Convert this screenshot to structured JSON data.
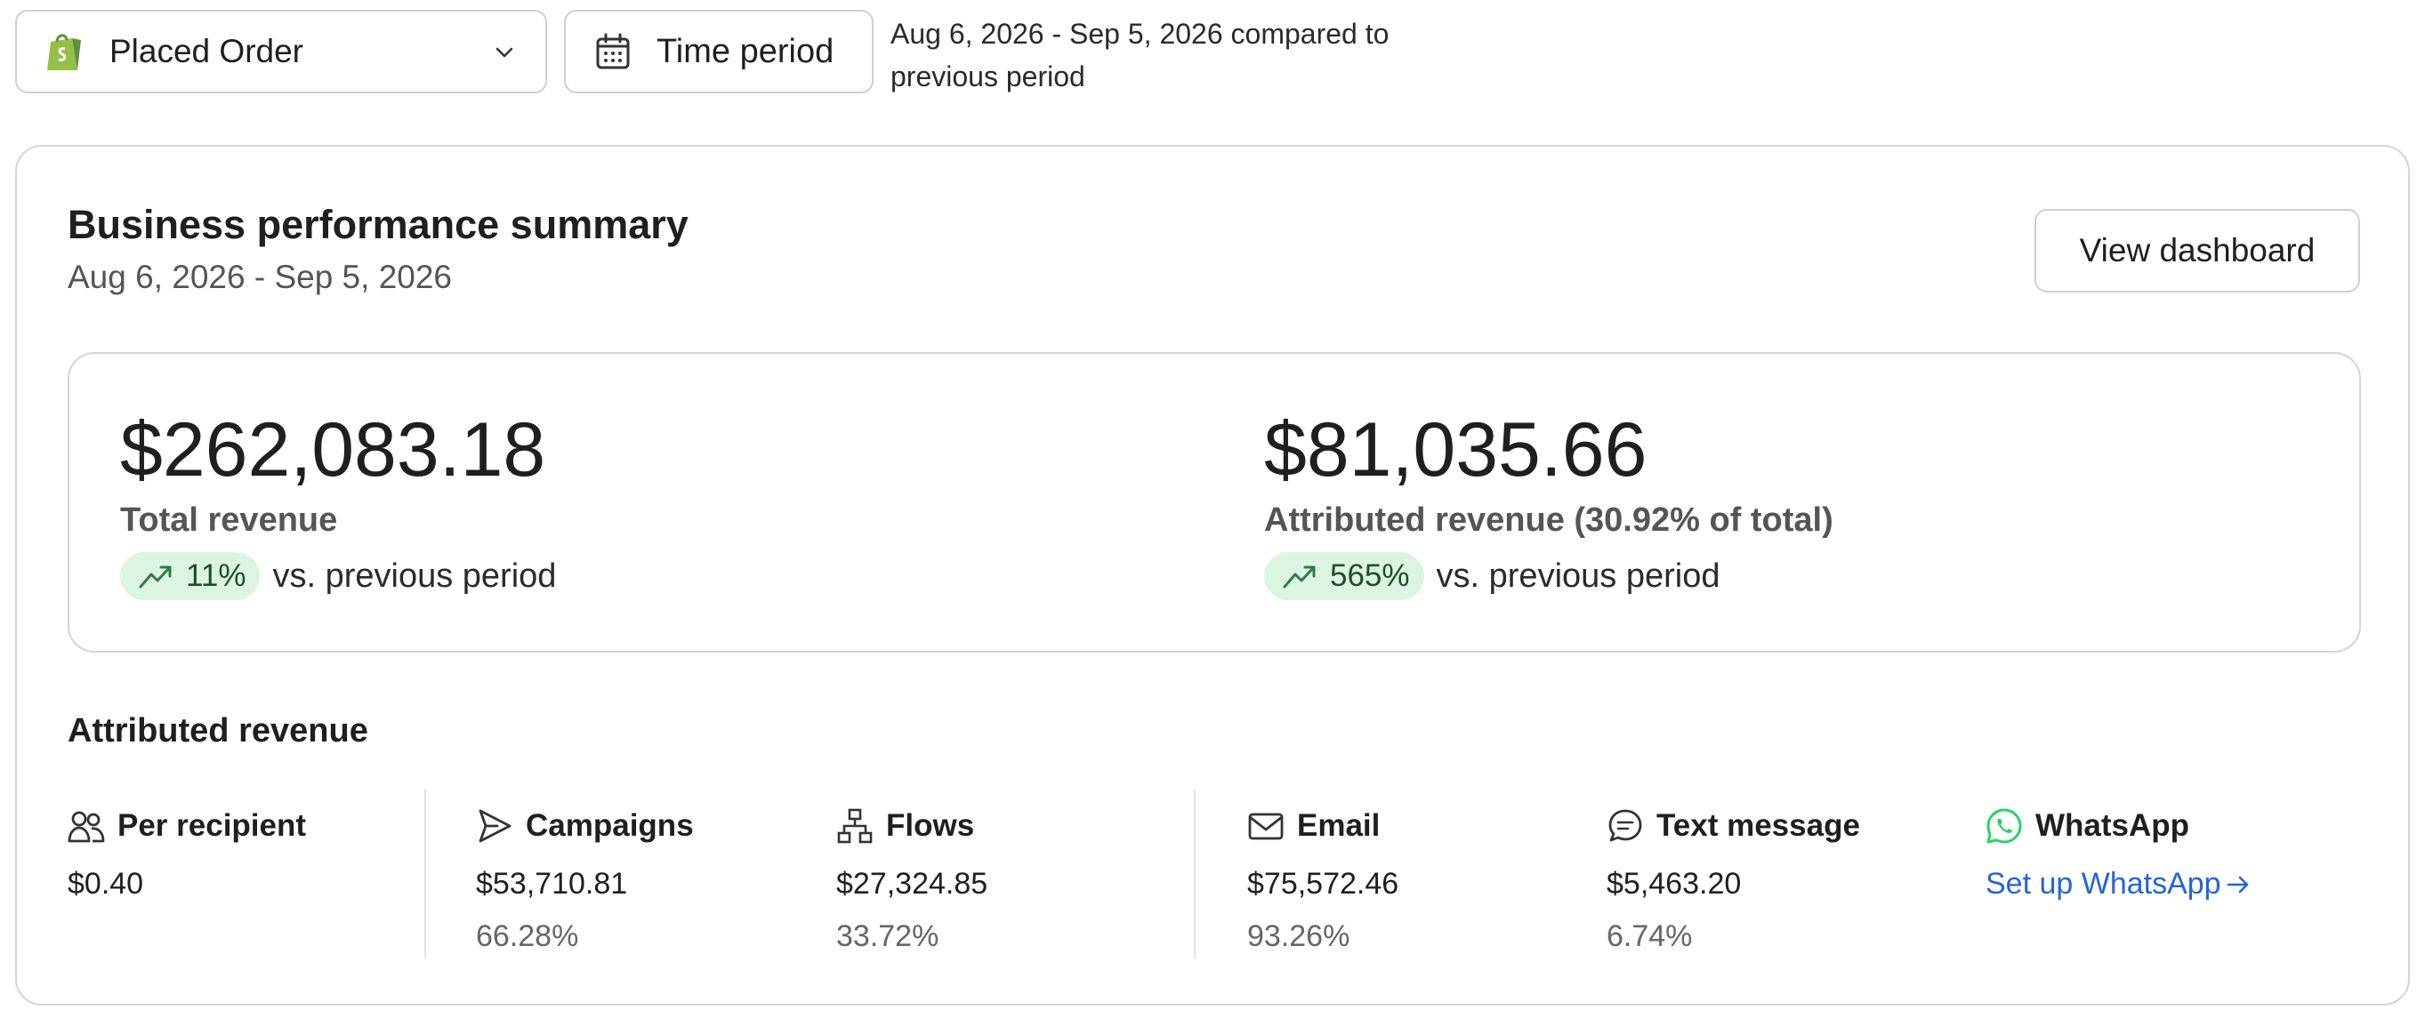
{
  "topbar": {
    "metric_select": {
      "value": "Placed Order",
      "icon": "shopify-bag-icon"
    },
    "time_period_label": "Time period",
    "compare_text": "Aug 6, 2026 - Sep 5, 2026 compared to previous period"
  },
  "summary": {
    "title": "Business performance summary",
    "date_range": "Aug 6, 2026 - Sep 5, 2026",
    "view_dashboard_label": "View dashboard",
    "total": {
      "value": "$262,083.18",
      "label": "Total revenue",
      "change": "11%",
      "change_text": "vs. previous period"
    },
    "attributed": {
      "value": "$81,035.66",
      "label": "Attributed revenue (30.92% of total)",
      "change": "565%",
      "change_text": "vs. previous period"
    }
  },
  "attributed_revenue": {
    "title": "Attributed revenue",
    "per_recipient": {
      "label": "Per recipient",
      "value": "$0.40"
    },
    "campaigns": {
      "label": "Campaigns",
      "value": "$53,710.81",
      "pct": "66.28%"
    },
    "flows": {
      "label": "Flows",
      "value": "$27,324.85",
      "pct": "33.72%"
    },
    "email": {
      "label": "Email",
      "value": "$75,572.46",
      "pct": "93.26%"
    },
    "text_message": {
      "label": "Text message",
      "value": "$5,463.20",
      "pct": "6.74%"
    },
    "whatsapp": {
      "label": "WhatsApp",
      "link": "Set up WhatsApp"
    }
  },
  "colors": {
    "trend_badge_bg": "#dcf5e1",
    "trend_text": "#1f4d2a",
    "link": "#2563d9",
    "shopify_green": "#95bf47",
    "whatsapp_green": "#25d366"
  }
}
